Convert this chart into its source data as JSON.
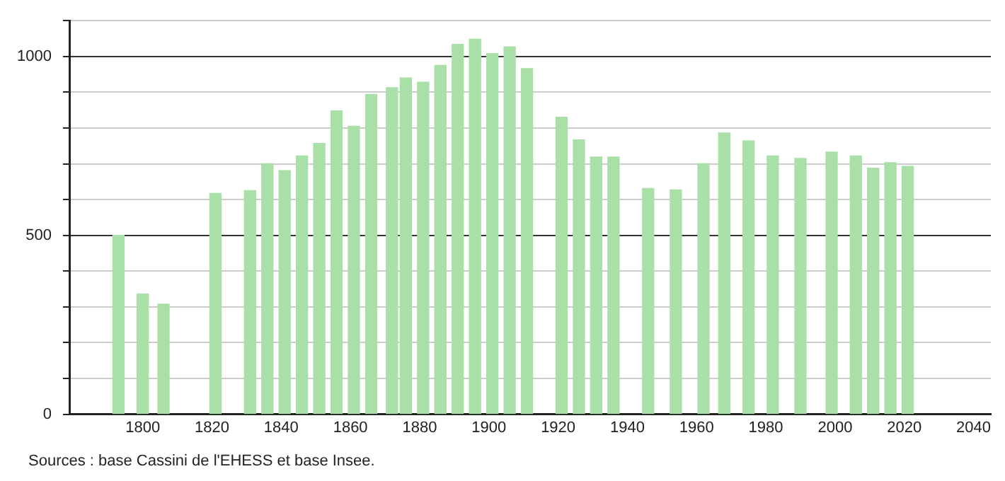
{
  "chart_data": {
    "type": "bar",
    "x": [
      1793,
      1800,
      1806,
      1821,
      1831,
      1836,
      1841,
      1846,
      1851,
      1856,
      1861,
      1866,
      1872,
      1876,
      1881,
      1886,
      1891,
      1896,
      1901,
      1906,
      1911,
      1921,
      1926,
      1931,
      1936,
      1946,
      1954,
      1962,
      1968,
      1975,
      1982,
      1990,
      1999,
      2006,
      2011,
      2016,
      2021
    ],
    "values": [
      500,
      336,
      308,
      617,
      625,
      700,
      681,
      722,
      757,
      848,
      805,
      894,
      913,
      940,
      928,
      975,
      1034,
      1048,
      1008,
      1027,
      966,
      830,
      767,
      719,
      719,
      631,
      627,
      700,
      786,
      764,
      722,
      715,
      733,
      722,
      688,
      703,
      693
    ],
    "color": "#a8e0a8",
    "xlim": [
      1779,
      2045
    ],
    "xticks": [
      1800,
      1820,
      1840,
      1860,
      1880,
      1900,
      1920,
      1940,
      1960,
      1980,
      2000,
      2020,
      2040
    ],
    "ylim": [
      0,
      1100
    ],
    "yticks": [
      0,
      {
        "value": 100,
        "label": null
      },
      {
        "value": 200,
        "label": null
      },
      {
        "value": 300,
        "label": null
      },
      {
        "value": 400,
        "label": null
      },
      500,
      {
        "value": 600,
        "label": null
      },
      {
        "value": 700,
        "label": null
      },
      {
        "value": 800,
        "label": null
      },
      {
        "value": 900,
        "label": null
      },
      1000,
      {
        "value": 1100,
        "label": null
      }
    ],
    "grid": "y",
    "annotations": [
      "Sources : base Cassini de l'EHESS et base Insee."
    ]
  }
}
